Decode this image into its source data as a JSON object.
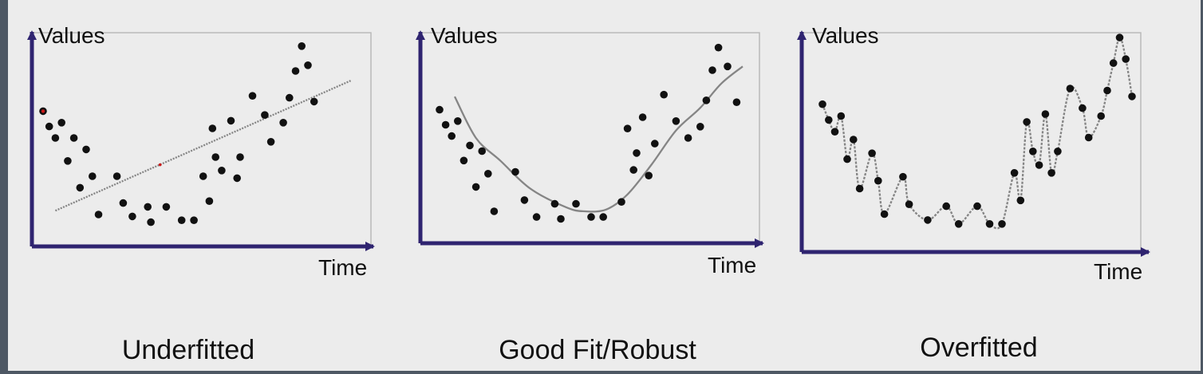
{
  "colors": {
    "axis": "#2f2470",
    "frame": "#b7b7b7",
    "point": "#111111",
    "highlight": "#cc1a1a",
    "curve": "#858585",
    "background": "#ececec",
    "border": "#4e5864"
  },
  "chart_data": [
    {
      "type": "scatter",
      "title": "Underfitted",
      "xlabel": "Time",
      "ylabel": "Values",
      "xlim": [
        0,
        100
      ],
      "ylim": [
        0,
        100
      ],
      "fit": "linear",
      "fit_line": [
        [
          4,
          12
        ],
        [
          100,
          80
        ]
      ],
      "highlight_points": [
        [
          0,
          64
        ],
        [
          38,
          36
        ]
      ],
      "points": [
        [
          0,
          64
        ],
        [
          2,
          56
        ],
        [
          4,
          50
        ],
        [
          6,
          58
        ],
        [
          8,
          38
        ],
        [
          10,
          50
        ],
        [
          12,
          24
        ],
        [
          14,
          44
        ],
        [
          16,
          30
        ],
        [
          18,
          10
        ],
        [
          24,
          30
        ],
        [
          26,
          16
        ],
        [
          29,
          9
        ],
        [
          34,
          14
        ],
        [
          35,
          6
        ],
        [
          40,
          14
        ],
        [
          45,
          7
        ],
        [
          49,
          7
        ],
        [
          52,
          30
        ],
        [
          54,
          17
        ],
        [
          55,
          55
        ],
        [
          56,
          40
        ],
        [
          58,
          33
        ],
        [
          61,
          59
        ],
        [
          63,
          29
        ],
        [
          64,
          40
        ],
        [
          68,
          72
        ],
        [
          72,
          62
        ],
        [
          74,
          48
        ],
        [
          78,
          58
        ],
        [
          80,
          71
        ],
        [
          82,
          85
        ],
        [
          84,
          98
        ],
        [
          86,
          88
        ],
        [
          88,
          69
        ]
      ]
    },
    {
      "type": "scatter",
      "title": "Good Fit/Robust",
      "xlabel": "Time",
      "ylabel": "Values",
      "xlim": [
        0,
        100
      ],
      "ylim": [
        0,
        100
      ],
      "fit": "smooth curve",
      "fit_line": [
        [
          5,
          72
        ],
        [
          12,
          50
        ],
        [
          20,
          38
        ],
        [
          30,
          23
        ],
        [
          42,
          13
        ],
        [
          48,
          11
        ],
        [
          55,
          12
        ],
        [
          62,
          20
        ],
        [
          70,
          36
        ],
        [
          78,
          54
        ],
        [
          86,
          66
        ],
        [
          93,
          79
        ],
        [
          100,
          88
        ]
      ],
      "points": [
        [
          0,
          65
        ],
        [
          2,
          57
        ],
        [
          4,
          51
        ],
        [
          6,
          59
        ],
        [
          8,
          38
        ],
        [
          10,
          46
        ],
        [
          12,
          24
        ],
        [
          14,
          43
        ],
        [
          16,
          31
        ],
        [
          18,
          11
        ],
        [
          25,
          32
        ],
        [
          28,
          17
        ],
        [
          32,
          8
        ],
        [
          38,
          15
        ],
        [
          40,
          7
        ],
        [
          45,
          15
        ],
        [
          50,
          8
        ],
        [
          54,
          8
        ],
        [
          60,
          16
        ],
        [
          62,
          55
        ],
        [
          64,
          33
        ],
        [
          65,
          42
        ],
        [
          67,
          61
        ],
        [
          69,
          30
        ],
        [
          71,
          47
        ],
        [
          74,
          73
        ],
        [
          78,
          59
        ],
        [
          82,
          50
        ],
        [
          86,
          56
        ],
        [
          88,
          70
        ],
        [
          90,
          86
        ],
        [
          92,
          98
        ],
        [
          95,
          88
        ],
        [
          98,
          69
        ]
      ]
    },
    {
      "type": "scatter",
      "title": "Overfitted",
      "xlabel": "Time",
      "ylabel": "Values",
      "xlim": [
        0,
        100
      ],
      "ylim": [
        0,
        100
      ],
      "fit": "interpolating curve through every point",
      "points": [
        [
          0,
          68
        ],
        [
          2,
          60
        ],
        [
          4,
          54
        ],
        [
          6,
          62
        ],
        [
          8,
          40
        ],
        [
          10,
          50
        ],
        [
          12,
          25
        ],
        [
          16,
          43
        ],
        [
          18,
          29
        ],
        [
          20,
          12
        ],
        [
          26,
          31
        ],
        [
          28,
          17
        ],
        [
          34,
          9
        ],
        [
          40,
          16
        ],
        [
          44,
          7
        ],
        [
          50,
          16
        ],
        [
          54,
          7
        ],
        [
          58,
          7
        ],
        [
          62,
          33
        ],
        [
          64,
          19
        ],
        [
          66,
          59
        ],
        [
          68,
          44
        ],
        [
          70,
          37
        ],
        [
          72,
          63
        ],
        [
          74,
          33
        ],
        [
          76,
          44
        ],
        [
          80,
          76
        ],
        [
          84,
          66
        ],
        [
          86,
          51
        ],
        [
          90,
          62
        ],
        [
          92,
          75
        ],
        [
          94,
          89
        ],
        [
          96,
          102
        ],
        [
          98,
          91
        ],
        [
          100,
          72
        ]
      ]
    }
  ]
}
